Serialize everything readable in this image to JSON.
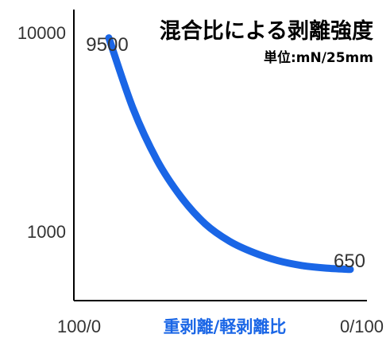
{
  "chart_data": {
    "type": "line",
    "title": "混合比による剥離強度",
    "subtitle": "単位:mN/25mm",
    "xlabel": "重剥離/軽剥離比",
    "x_tick_labels": [
      "100/0",
      "0/100"
    ],
    "y_scale": "log",
    "y_tick_labels": [
      "10000",
      "1000"
    ],
    "y_ticks": [
      10000,
      1000
    ],
    "ylim": [
      380,
      13500
    ],
    "grid": false,
    "legend": "none",
    "data_labels": [
      "9500",
      "650"
    ],
    "series": [
      {
        "color": "#1a66e6",
        "x": [
          0,
          10,
          20,
          30,
          40,
          50,
          60,
          70,
          80,
          90,
          100
        ],
        "y": [
          9500,
          4200,
          2300,
          1500,
          1100,
          900,
          790,
          720,
          680,
          660,
          650
        ]
      }
    ]
  }
}
